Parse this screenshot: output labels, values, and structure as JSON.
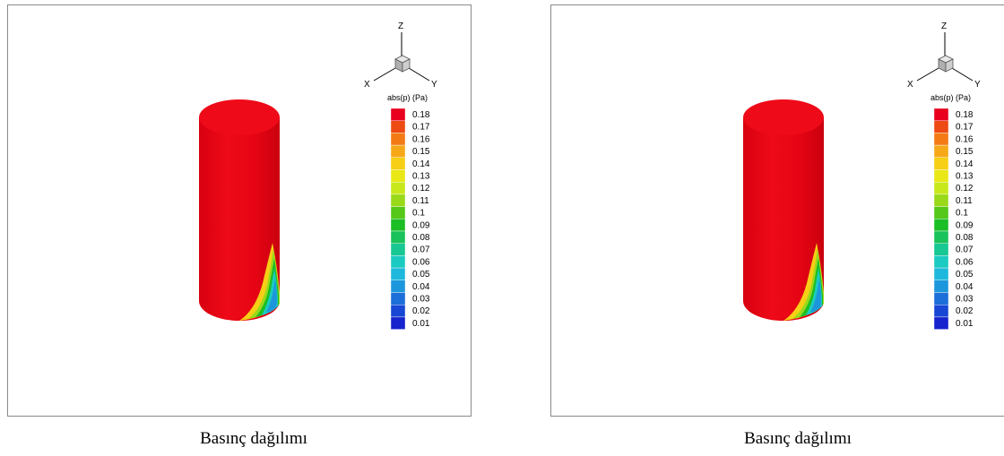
{
  "figures": [
    {
      "caption": "Basınç dağılımı",
      "axes_triad": {
        "z": "Z",
        "x": "X",
        "y": "Y"
      },
      "legend": {
        "title": "abs(p) (Pa)",
        "levels": [
          "0.18",
          "0.17",
          "0.16",
          "0.15",
          "0.14",
          "0.13",
          "0.12",
          "0.11",
          "0.1",
          "0.09",
          "0.08",
          "0.07",
          "0.06",
          "0.05",
          "0.04",
          "0.03",
          "0.02",
          "0.01"
        ],
        "colors": [
          "#e8001e",
          "#ee4a14",
          "#f47a16",
          "#f7a818",
          "#f6cf16",
          "#e9e716",
          "#c8e81c",
          "#9ad91a",
          "#55c81a",
          "#1cbe26",
          "#19c25a",
          "#18c792",
          "#1bcbc1",
          "#1eb8dc",
          "#1d97dc",
          "#1c6ed9",
          "#1747d4",
          "#1624cd"
        ]
      }
    },
    {
      "caption": "Basınç dağılımı",
      "axes_triad": {
        "z": "Z",
        "x": "X",
        "y": "Y"
      },
      "legend": {
        "title": "abs(p) (Pa)",
        "levels": [
          "0.18",
          "0.17",
          "0.16",
          "0.15",
          "0.14",
          "0.13",
          "0.12",
          "0.11",
          "0.1",
          "0.09",
          "0.08",
          "0.07",
          "0.06",
          "0.05",
          "0.04",
          "0.03",
          "0.02",
          "0.01"
        ],
        "colors": [
          "#e8001e",
          "#ee4a14",
          "#f47a16",
          "#f7a818",
          "#f6cf16",
          "#e9e716",
          "#c8e81c",
          "#9ad91a",
          "#55c81a",
          "#1cbe26",
          "#19c25a",
          "#18c792",
          "#1bcbc1",
          "#1eb8dc",
          "#1d97dc",
          "#1c6ed9",
          "#1747d4",
          "#1624cd"
        ]
      }
    }
  ]
}
